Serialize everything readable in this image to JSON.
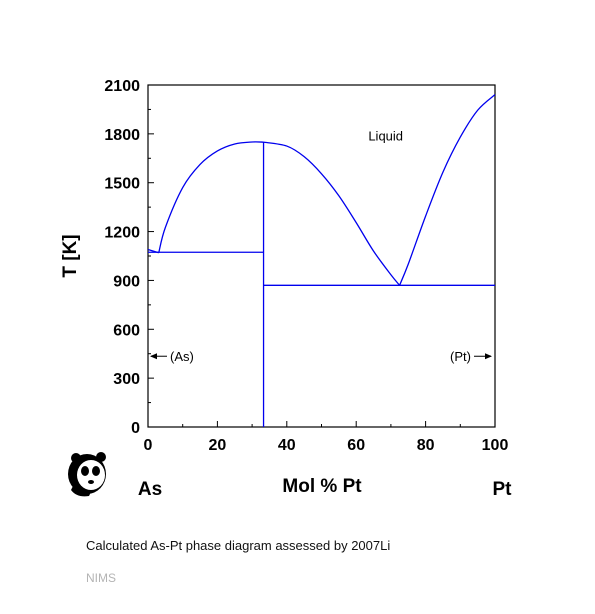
{
  "chart_data": {
    "type": "line",
    "title": "",
    "xlabel": "Mol % Pt",
    "ylabel": "T [K]",
    "xlim": [
      0,
      100
    ],
    "ylim": [
      0,
      2100
    ],
    "x_ticks": [
      0,
      20,
      40,
      60,
      80,
      100
    ],
    "y_ticks": [
      0,
      300,
      600,
      900,
      1200,
      1500,
      1800,
      2100
    ],
    "left_element": "As",
    "right_element": "Pt",
    "line_color": "#0000ee",
    "series": [
      {
        "x": [
          0,
          3.1
        ],
        "y": [
          1090,
          1070
        ]
      },
      {
        "x": [
          3.1,
          5,
          10,
          15,
          20,
          25,
          30,
          33.3
        ],
        "y": [
          1070,
          1225,
          1470,
          1612,
          1695,
          1738,
          1750,
          1749
        ]
      },
      {
        "x": [
          33.3,
          40,
          45,
          50,
          55,
          60,
          65,
          70,
          72.5
        ],
        "y": [
          1749,
          1725,
          1660,
          1555,
          1420,
          1255,
          1080,
          935,
          870
        ]
      },
      {
        "x": [
          72.5,
          75,
          80,
          85,
          90,
          95,
          100
        ],
        "y": [
          870,
          1000,
          1295,
          1565,
          1780,
          1945,
          2041
        ]
      },
      {
        "x": [
          0,
          33.3
        ],
        "y": [
          1073,
          1073
        ]
      },
      {
        "x": [
          33.3,
          100
        ],
        "y": [
          870,
          870
        ]
      },
      {
        "x": [
          33.3,
          33.3
        ],
        "y": [
          1749,
          0
        ]
      }
    ],
    "annotations": {
      "liquid": {
        "text": "Liquid",
        "x": 68.5,
        "y": 1760
      },
      "as_phase": {
        "text": "(As)",
        "x": 7.5,
        "y": 410
      },
      "pt_phase": {
        "text": "(Pt)",
        "x": 89,
        "y": 410
      }
    }
  },
  "caption": "Calculated As-Pt phase diagram assessed by 2007Li",
  "credit": "NIMS",
  "logo_icon": "panda-logo-icon"
}
